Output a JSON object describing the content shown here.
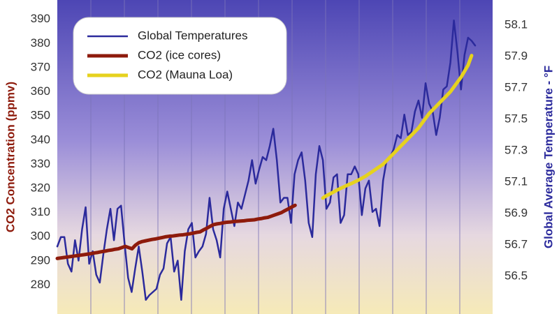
{
  "chart_data": {
    "type": "line",
    "ylabel": "CO2 Concentration (ppmv)",
    "y2label": "Global Average Temperature - °F",
    "ylim": [
      268,
      398
    ],
    "yticks": [
      280,
      290,
      300,
      310,
      320,
      330,
      340,
      350,
      360,
      370,
      380,
      390
    ],
    "y2lim": [
      56.26,
      58.26
    ],
    "y2ticks": [
      56.5,
      56.7,
      56.9,
      57.1,
      57.3,
      57.5,
      57.7,
      57.9,
      58.1
    ],
    "legend": "top-left",
    "series": [
      {
        "name": "Global Temperatures",
        "color": "#2b2a9c",
        "axis": "y2",
        "values": [
          56.69,
          56.75,
          56.75,
          56.58,
          56.53,
          56.73,
          56.6,
          56.8,
          56.94,
          56.58,
          56.66,
          56.51,
          56.46,
          56.64,
          56.8,
          56.93,
          56.73,
          56.93,
          56.95,
          56.71,
          56.49,
          56.4,
          56.55,
          56.69,
          56.53,
          56.35,
          56.38,
          56.4,
          56.42,
          56.51,
          56.55,
          56.71,
          56.75,
          56.53,
          56.6,
          56.35,
          56.66,
          56.8,
          56.84,
          56.62,
          56.66,
          56.69,
          56.77,
          57.0,
          56.8,
          56.73,
          56.62,
          56.93,
          57.04,
          56.93,
          56.82,
          56.97,
          56.93,
          57.02,
          57.11,
          57.24,
          57.09,
          57.18,
          57.26,
          57.24,
          57.33,
          57.44,
          57.24,
          56.97,
          57.0,
          57.0,
          56.84,
          57.15,
          57.24,
          57.29,
          57.11,
          56.84,
          56.75,
          57.15,
          57.33,
          57.24,
          56.93,
          56.97,
          57.13,
          57.15,
          56.84,
          56.89,
          57.15,
          57.15,
          57.2,
          57.15,
          56.89,
          57.06,
          57.11,
          56.91,
          56.93,
          56.82,
          57.11,
          57.24,
          57.26,
          57.31,
          57.4,
          57.38,
          57.53,
          57.4,
          57.42,
          57.55,
          57.62,
          57.51,
          57.73,
          57.6,
          57.55,
          57.4,
          57.51,
          57.69,
          57.71,
          57.86,
          58.13,
          57.93,
          57.69,
          57.91,
          58.02,
          58.0,
          57.97
        ]
      },
      {
        "name": "CO2 (ice cores)",
        "color": "#8e1b0c",
        "axis": "y",
        "values": [
          291,
          291.2,
          291.4,
          291.6,
          291.8,
          292,
          292.2,
          292.4,
          292.6,
          292.8,
          293,
          293.3,
          293.5,
          293.8,
          294,
          294.3,
          294.5,
          294.8,
          295,
          295.5,
          296,
          295.5,
          295,
          296.5,
          297.5,
          298,
          298.3,
          298.6,
          298.9,
          299.1,
          299.4,
          299.7,
          300,
          300.2,
          300.3,
          300.5,
          300.7,
          300.8,
          301,
          301.2,
          301.5,
          301.8,
          302,
          302.8,
          303.5,
          304.3,
          305,
          305.3,
          305.5,
          305.8,
          306,
          306.1,
          306.3,
          306.4,
          306.5,
          306.6,
          306.8,
          306.9,
          307,
          307.3,
          307.5,
          307.8,
          308,
          308.5,
          309,
          309.5,
          310,
          310.8,
          311.5,
          312.3,
          313,
          null,
          null,
          null,
          null,
          null,
          null,
          null,
          null,
          null,
          null,
          null,
          null,
          null,
          null,
          null,
          null,
          null,
          null,
          null,
          null,
          null,
          null,
          null,
          null,
          null,
          null,
          null,
          null,
          null,
          null,
          null,
          null,
          null,
          null,
          null,
          null,
          null,
          null,
          null,
          null,
          null,
          null,
          null,
          null,
          null,
          null,
          null,
          null,
          null,
          null,
          null,
          null,
          null
        ]
      },
      {
        "name": "CO2 (Mauna Loa)",
        "color": "#e6d21e",
        "axis": "y",
        "values": [
          null,
          null,
          null,
          null,
          null,
          null,
          null,
          null,
          null,
          null,
          null,
          null,
          null,
          null,
          null,
          null,
          null,
          null,
          null,
          null,
          null,
          null,
          null,
          null,
          null,
          null,
          null,
          null,
          null,
          null,
          null,
          null,
          null,
          null,
          null,
          null,
          null,
          null,
          null,
          null,
          null,
          null,
          null,
          null,
          null,
          null,
          null,
          null,
          null,
          null,
          null,
          null,
          null,
          null,
          null,
          null,
          null,
          null,
          null,
          null,
          null,
          null,
          null,
          null,
          null,
          null,
          null,
          null,
          null,
          null,
          null,
          null,
          null,
          null,
          null,
          316,
          317,
          317.7,
          318.5,
          319.3,
          320,
          320.7,
          321.4,
          322,
          322.7,
          323.4,
          324.2,
          325,
          326,
          327,
          328,
          329,
          330,
          331.5,
          333,
          334.5,
          336,
          337.5,
          339,
          340.5,
          342,
          343.5,
          345,
          347,
          349,
          351,
          352.5,
          354,
          355.5,
          357,
          358.5,
          360,
          362,
          364,
          366,
          368.5,
          371,
          375,
          null
        ]
      }
    ]
  }
}
